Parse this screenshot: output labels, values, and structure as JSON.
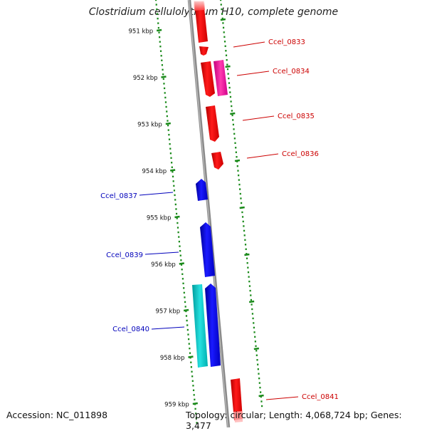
{
  "title": "Clostridium cellulolyticum H10, complete genome",
  "footer": {
    "accession": "Accession: NC_011898",
    "topology": "Topology: circular; Length: 4,068,724 bp; Genes: 3,477"
  },
  "scale_marks": [
    "951 kbp",
    "952 kbp",
    "953 kbp",
    "954 kbp",
    "955 kbp",
    "956 kbp",
    "957 kbp",
    "958 kbp",
    "959 kbp"
  ],
  "gene_labels": [
    "Ccel_0833",
    "Ccel_0834",
    "Ccel_0835",
    "Ccel_0836",
    "Ccel_0837",
    "Ccel_0839",
    "Ccel_0840",
    "Ccel_0841"
  ],
  "colors": {
    "forward": "#ff0000",
    "forward_alt": "#ff1fa0",
    "reverse": "#0000ee",
    "reverse_alt": "#00c8c8",
    "backbone": "#888888",
    "ticks": "#1a8a1a",
    "label_forward": "#cc0000",
    "label_reverse": "#0000bb"
  }
}
